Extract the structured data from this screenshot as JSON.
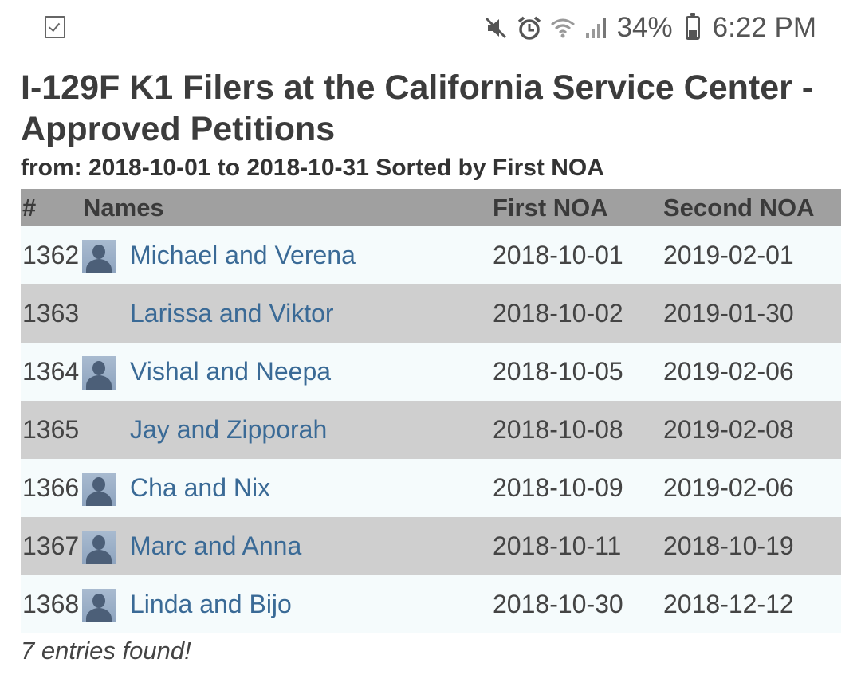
{
  "status_bar": {
    "left_icon": "checkbox-notification-icon",
    "icons": [
      "mute-icon",
      "alarm-icon",
      "wifi-icon",
      "signal-icon"
    ],
    "battery_percent": "34%",
    "time": "6:22 PM"
  },
  "page": {
    "title": "I-129F K1 Filers at the California Service Center - Approved Petitions",
    "subtitle": "from: 2018-10-01 to 2018-10-31 Sorted by First NOA"
  },
  "table": {
    "headers": {
      "num": "#",
      "names": "Names",
      "first_noa": "First NOA",
      "second_noa": "Second NOA"
    },
    "rows": [
      {
        "num": "1362",
        "avatar": true,
        "names": "Michael and Verena",
        "first_noa": "2018-10-01",
        "second_noa": "2019-02-01"
      },
      {
        "num": "1363",
        "avatar": false,
        "names": "Larissa and Viktor",
        "first_noa": "2018-10-02",
        "second_noa": "2019-01-30"
      },
      {
        "num": "1364",
        "avatar": true,
        "names": "Vishal and Neepa",
        "first_noa": "2018-10-05",
        "second_noa": "2019-02-06"
      },
      {
        "num": "1365",
        "avatar": false,
        "names": "Jay and Zipporah",
        "first_noa": "2018-10-08",
        "second_noa": "2019-02-08"
      },
      {
        "num": "1366",
        "avatar": true,
        "names": "Cha and Nix",
        "first_noa": "2018-10-09",
        "second_noa": "2019-02-06"
      },
      {
        "num": "1367",
        "avatar": true,
        "names": "Marc and Anna",
        "first_noa": "2018-10-11",
        "second_noa": "2018-10-19"
      },
      {
        "num": "1368",
        "avatar": true,
        "names": "Linda and Bijo",
        "first_noa": "2018-10-30",
        "second_noa": "2018-12-12"
      }
    ]
  },
  "footer": {
    "entries_found": "7 entries found!"
  },
  "colors": {
    "header_bg": "#a0a0a0",
    "row_light": "#f5fbfc",
    "row_dark": "#cfcfcf",
    "link": "#3a6a96"
  }
}
